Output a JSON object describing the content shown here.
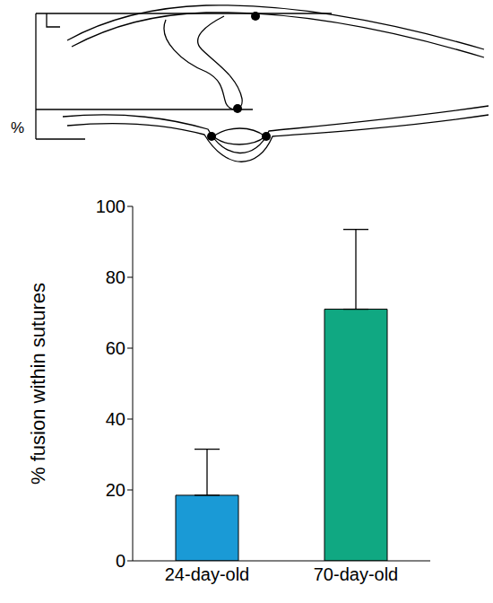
{
  "chart_data": {
    "type": "bar",
    "categories": [
      "24-day-old",
      "70-day-old"
    ],
    "values": [
      18.5,
      71
    ],
    "errors": [
      13,
      22.5
    ],
    "colors": [
      "#1a9ad6",
      "#10a882"
    ],
    "ylabel": "% fusion within sutures",
    "ylim": [
      0,
      100
    ],
    "yticks": [
      0,
      20,
      40,
      60,
      80,
      100
    ],
    "grid": false
  },
  "diagram": {
    "label": "%"
  }
}
